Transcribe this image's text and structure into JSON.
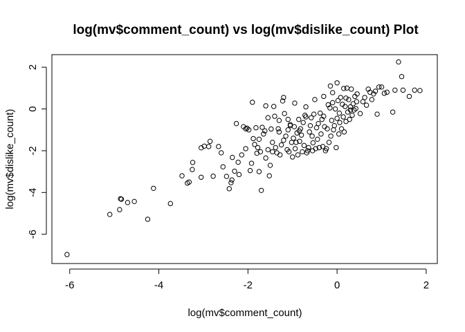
{
  "chart_data": {
    "type": "scatter",
    "title": "log(mv$comment_count) vs log(mv$dislike_count) Plot",
    "xlabel": "log(mv$comment_count)",
    "ylabel": "log(mv$dislike_count)",
    "xlim": [
      -6.4,
      2.25
    ],
    "ylim": [
      -7.4,
      2.6
    ],
    "x_ticks": [
      -6,
      -4,
      -2,
      0,
      2
    ],
    "x_tick_labels": [
      "-6",
      "-4",
      "-2",
      "0",
      "2"
    ],
    "y_ticks": [
      -6,
      -4,
      -2,
      0,
      2
    ],
    "y_tick_labels": [
      "-6",
      "-4",
      "-2",
      "0",
      "2"
    ],
    "grid": false,
    "marker": "open-circle",
    "points": [
      [
        -6.06,
        -6.97
      ],
      [
        -5.1,
        -5.05
      ],
      [
        -4.88,
        -4.82
      ],
      [
        -4.86,
        -4.3
      ],
      [
        -4.84,
        -4.32
      ],
      [
        -4.7,
        -4.48
      ],
      [
        -4.55,
        -4.43
      ],
      [
        -4.25,
        -5.28
      ],
      [
        -4.12,
        -3.8
      ],
      [
        -3.74,
        -4.53
      ],
      [
        -3.48,
        -3.2
      ],
      [
        -3.36,
        -3.55
      ],
      [
        -3.32,
        -3.5
      ],
      [
        -3.25,
        -2.9
      ],
      [
        -3.24,
        -2.56
      ],
      [
        -3.05,
        -3.27
      ],
      [
        -3.05,
        -1.86
      ],
      [
        -2.98,
        -1.78
      ],
      [
        -2.88,
        -1.8
      ],
      [
        -2.78,
        -3.22
      ],
      [
        -2.66,
        -1.8
      ],
      [
        -2.6,
        -2.1
      ],
      [
        -2.56,
        -2.77
      ],
      [
        -2.48,
        -3.23
      ],
      [
        -2.42,
        -3.82
      ],
      [
        -2.38,
        -3.53
      ],
      [
        -2.36,
        -3.4
      ],
      [
        -2.35,
        -2.32
      ],
      [
        -2.3,
        -2.98
      ],
      [
        -2.26,
        -0.7
      ],
      [
        -2.22,
        -2.55
      ],
      [
        -2.2,
        -3.14
      ],
      [
        -2.14,
        -2.2
      ],
      [
        -2.1,
        -0.85
      ],
      [
        -2.05,
        -0.95
      ],
      [
        -2.02,
        -0.92
      ],
      [
        -1.95,
        -2.95
      ],
      [
        -1.92,
        -2.6
      ],
      [
        -1.9,
        0.32
      ],
      [
        -1.88,
        -1.42
      ],
      [
        -1.85,
        -1.7
      ],
      [
        -1.82,
        -0.9
      ],
      [
        -1.8,
        -2.12
      ],
      [
        -1.78,
        -1.85
      ],
      [
        -1.75,
        -3.0
      ],
      [
        -1.72,
        -2.05
      ],
      [
        -1.7,
        -3.9
      ],
      [
        -1.68,
        -0.88
      ],
      [
        -1.65,
        -1.2
      ],
      [
        -1.6,
        -2.35
      ],
      [
        -1.55,
        -1.95
      ],
      [
        -1.52,
        -3.2
      ],
      [
        -1.5,
        -2.7
      ],
      [
        -1.48,
        -0.96
      ],
      [
        -1.45,
        -1.6
      ],
      [
        -1.42,
        0.12
      ],
      [
        -1.4,
        -0.35
      ],
      [
        -1.38,
        -1.85
      ],
      [
        -1.35,
        -2.1
      ],
      [
        -1.32,
        -0.95
      ],
      [
        -1.3,
        -1.1
      ],
      [
        -1.28,
        -2.2
      ],
      [
        -1.25,
        -1.72
      ],
      [
        -1.22,
        0.38
      ],
      [
        -1.2,
        -1.5
      ],
      [
        -1.18,
        -0.22
      ],
      [
        -1.15,
        -1.3
      ],
      [
        -1.12,
        -1.95
      ],
      [
        -1.1,
        -1.0
      ],
      [
        -1.08,
        -2.05
      ],
      [
        -1.05,
        -0.75
      ],
      [
        -1.02,
        -1.6
      ],
      [
        -1.0,
        -2.3
      ],
      [
        -0.98,
        -1.4
      ],
      [
        -0.96,
        -0.85
      ],
      [
        -0.94,
        -1.9
      ],
      [
        -0.92,
        -1.6
      ],
      [
        -0.9,
        -1.15
      ],
      [
        -0.88,
        -2.2
      ],
      [
        -0.86,
        -0.5
      ],
      [
        -0.84,
        -1.55
      ],
      [
        -0.82,
        -0.95
      ],
      [
        -0.8,
        -1.25
      ],
      [
        -0.78,
        -2.05
      ],
      [
        -0.76,
        -0.65
      ],
      [
        -0.74,
        -1.75
      ],
      [
        -0.72,
        -0.3
      ],
      [
        -0.7,
        -0.38
      ],
      [
        -0.68,
        -2.1
      ],
      [
        -0.66,
        -2.0
      ],
      [
        -0.64,
        -1.85
      ],
      [
        -0.62,
        -1.1
      ],
      [
        -0.6,
        -0.8
      ],
      [
        -0.58,
        -0.42
      ],
      [
        -0.56,
        -1.3
      ],
      [
        -0.54,
        -1.62
      ],
      [
        -0.52,
        -0.25
      ],
      [
        -0.5,
        0.45
      ],
      [
        -0.48,
        -1.9
      ],
      [
        -0.46,
        -0.9
      ],
      [
        -0.44,
        -1.45
      ],
      [
        -0.42,
        -0.7
      ],
      [
        -0.4,
        -1.85
      ],
      [
        -0.38,
        -0.2
      ],
      [
        -0.36,
        -1.2
      ],
      [
        -0.34,
        -0.5
      ],
      [
        -0.32,
        -1.8
      ],
      [
        -0.3,
        0.6
      ],
      [
        -0.28,
        -0.85
      ],
      [
        -0.26,
        -2.0
      ],
      [
        -0.24,
        -1.9
      ],
      [
        -0.22,
        -0.95
      ],
      [
        -0.2,
        0.2
      ],
      [
        -0.18,
        -1.6
      ],
      [
        -0.16,
        0.05
      ],
      [
        -0.14,
        -1.3
      ],
      [
        -0.12,
        -0.55
      ],
      [
        -0.1,
        0.78
      ],
      [
        -0.08,
        -1.0
      ],
      [
        -0.06,
        -0.8
      ],
      [
        -0.04,
        0.0
      ],
      [
        -0.02,
        -1.85
      ],
      [
        0.0,
        -0.45
      ],
      [
        0.02,
        0.4
      ],
      [
        0.04,
        -1.2
      ],
      [
        0.06,
        -0.65
      ],
      [
        0.08,
        0.55
      ],
      [
        0.1,
        -0.95
      ],
      [
        0.12,
        0.22
      ],
      [
        0.14,
        -0.38
      ],
      [
        0.16,
        -1.1
      ],
      [
        0.18,
        0.12
      ],
      [
        0.2,
        -0.6
      ],
      [
        0.22,
        1.0
      ],
      [
        0.24,
        -0.15
      ],
      [
        0.26,
        0.45
      ],
      [
        0.28,
        -0.5
      ],
      [
        0.3,
        0.1
      ],
      [
        0.32,
        0.95
      ],
      [
        0.34,
        -0.3
      ],
      [
        0.36,
        0.25
      ],
      [
        0.38,
        -0.05
      ],
      [
        0.4,
        0.6
      ],
      [
        0.42,
        0.02
      ],
      [
        0.44,
        0.35
      ],
      [
        -1.2,
        0.55
      ],
      [
        -1.55,
        -0.42
      ],
      [
        -1.62,
        -1.05
      ],
      [
        -1.98,
        -1.0
      ],
      [
        -1.6,
        0.15
      ],
      [
        -1.1,
        -0.5
      ],
      [
        -0.95,
        0.28
      ],
      [
        -0.7,
        0.1
      ],
      [
        -0.3,
        -0.35
      ],
      [
        -0.15,
        1.1
      ],
      [
        -0.1,
        0.3
      ],
      [
        0.0,
        1.25
      ],
      [
        0.05,
        -0.2
      ],
      [
        0.15,
        0.98
      ],
      [
        0.2,
        0.52
      ],
      [
        0.3,
        -0.05
      ],
      [
        0.45,
        0.72
      ],
      [
        0.52,
        -0.22
      ],
      [
        0.58,
        0.35
      ],
      [
        0.62,
        0.55
      ],
      [
        0.66,
        0.18
      ],
      [
        0.7,
        0.95
      ],
      [
        0.74,
        0.8
      ],
      [
        0.78,
        0.45
      ],
      [
        0.82,
        0.72
      ],
      [
        0.86,
        0.85
      ],
      [
        0.9,
        -0.25
      ],
      [
        0.94,
        1.05
      ],
      [
        1.0,
        1.05
      ],
      [
        1.06,
        0.75
      ],
      [
        1.12,
        0.8
      ],
      [
        1.25,
        -0.15
      ],
      [
        1.3,
        0.9
      ],
      [
        1.38,
        2.25
      ],
      [
        1.45,
        1.55
      ],
      [
        1.48,
        0.9
      ],
      [
        1.62,
        0.6
      ],
      [
        1.74,
        0.9
      ],
      [
        1.86,
        0.88
      ],
      [
        -2.85,
        -1.55
      ],
      [
        -2.05,
        -1.9
      ],
      [
        -1.75,
        -1.45
      ],
      [
        -1.45,
        -2.05
      ],
      [
        -1.3,
        -0.55
      ],
      [
        -1.05,
        -0.8
      ],
      [
        -0.85,
        -1.05
      ],
      [
        -0.55,
        -2.0
      ]
    ]
  }
}
